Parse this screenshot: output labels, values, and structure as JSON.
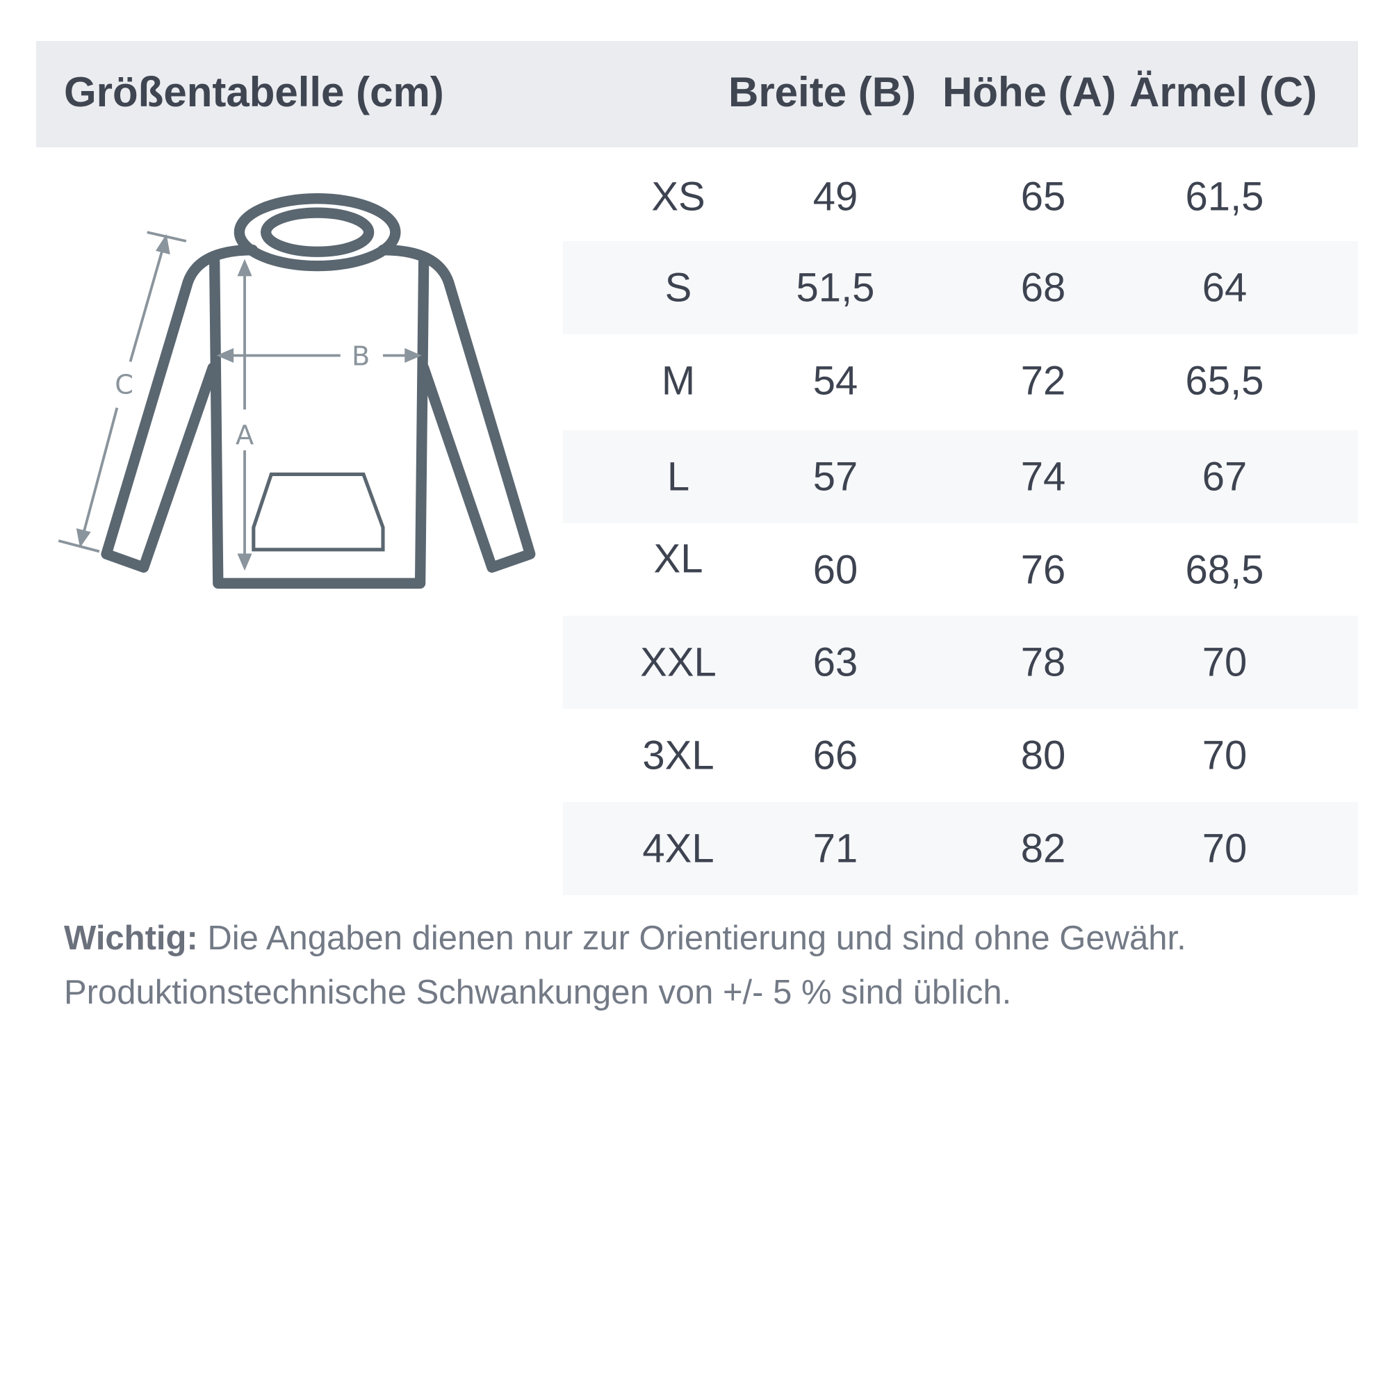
{
  "table": {
    "title": "Größentabelle (cm)",
    "columns": [
      "Breite (B)",
      "Höhe (A)",
      "Ärmel (C)"
    ],
    "rows": [
      {
        "size": "XS",
        "values": [
          "49",
          "65",
          "61,5"
        ]
      },
      {
        "size": "S",
        "values": [
          "51,5",
          "68",
          "64"
        ]
      },
      {
        "size": "M",
        "values": [
          "54",
          "72",
          "65,5"
        ]
      },
      {
        "size": "L",
        "values": [
          "57",
          "74",
          "67"
        ]
      },
      {
        "size": "XL",
        "values": [
          "60",
          "76",
          "68,5"
        ]
      },
      {
        "size": "XXL",
        "values": [
          "63",
          "78",
          "70"
        ]
      },
      {
        "size": "3XL",
        "values": [
          "66",
          "80",
          "70"
        ]
      },
      {
        "size": "4XL",
        "values": [
          "71",
          "82",
          "70"
        ]
      }
    ]
  },
  "diagram": {
    "labels": {
      "a": "A",
      "b": "B",
      "c": "C"
    },
    "icon": "hoodie-outline",
    "outline_color": "#5a6670",
    "arrow_color": "#8a949c"
  },
  "note": {
    "bold": "Wichtig:",
    "line1": " Die Angaben dienen nur zur Orientierung und sind ohne Gewähr.",
    "line2": "Produktionstechnische Schwankungen von +/- 5 % sind üblich."
  }
}
